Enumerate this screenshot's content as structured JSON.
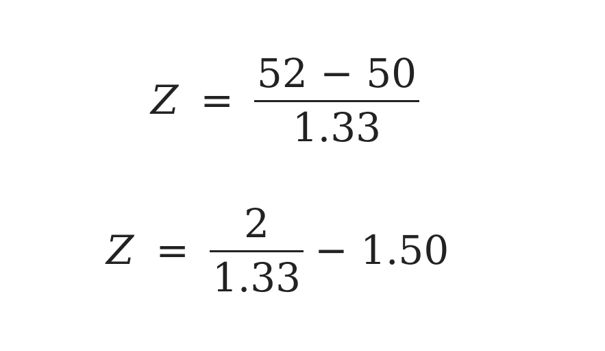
{
  "equations": [
    {
      "lhs": "Z",
      "eq": "=",
      "numerator": "52 − 50",
      "denominator": "1.33",
      "tail": ""
    },
    {
      "lhs": "Z",
      "eq": "=",
      "numerator": "2",
      "denominator": "1.33",
      "tail": "− 1.50"
    }
  ]
}
